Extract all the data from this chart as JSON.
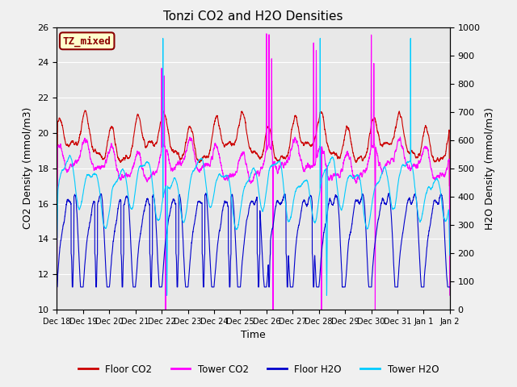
{
  "title": "Tonzi CO2 and H2O Densities",
  "xlabel": "Time",
  "ylabel_left": "CO2 Density (mmol/m3)",
  "ylabel_right": "H2O Density (mmol/m3)",
  "annotation": "TZ_mixed",
  "ylim_left": [
    10,
    26
  ],
  "ylim_right": [
    0,
    1000
  ],
  "yticks_left": [
    10,
    12,
    14,
    16,
    18,
    20,
    22,
    24,
    26
  ],
  "yticks_right": [
    0,
    100,
    200,
    300,
    400,
    500,
    600,
    700,
    800,
    900,
    1000
  ],
  "xtick_labels": [
    "Dec 18",
    "Dec 19",
    "Dec 20",
    "Dec 21",
    "Dec 22",
    "Dec 23",
    "Dec 24",
    "Dec 25",
    "Dec 26",
    "Dec 27",
    "Dec 28",
    "Dec 29",
    "Dec 30",
    "Dec 31",
    "Jan 1",
    "Jan 2"
  ],
  "colors": {
    "floor_co2": "#cc0000",
    "tower_co2": "#ff00ff",
    "floor_h2o": "#0000cc",
    "tower_h2o": "#00ccff"
  },
  "legend_labels": [
    "Floor CO2",
    "Tower CO2",
    "Floor H2O",
    "Tower H2O"
  ],
  "plot_bg": "#e8e8e8",
  "fig_bg": "#f0f0f0",
  "grid_color": "#ffffff",
  "num_days": 15,
  "annotation_color": "#8b0000",
  "annotation_bg": "#ffffcc",
  "annotation_border": "#8b0000",
  "linewidth": 0.8
}
